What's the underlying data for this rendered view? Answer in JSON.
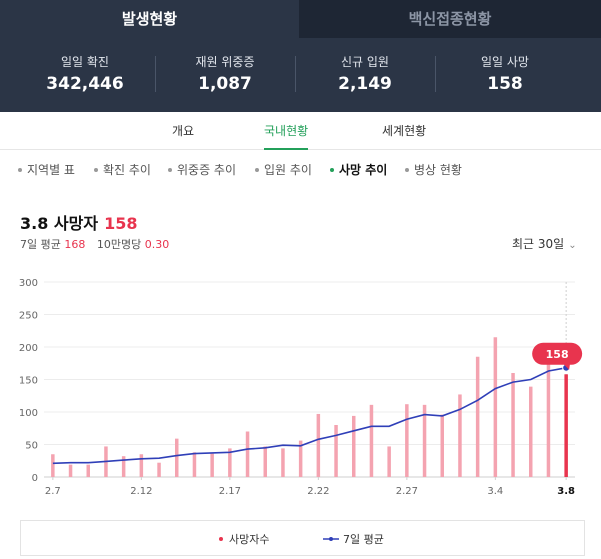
{
  "top_tabs": [
    {
      "label": "발생현황"
    },
    {
      "label": "백신접종현황"
    }
  ],
  "stats": [
    {
      "label": "일일 확진",
      "value": "342,446"
    },
    {
      "label": "재원 위중증",
      "value": "1,087"
    },
    {
      "label": "신규 입원",
      "value": "2,149"
    },
    {
      "label": "일일 사망",
      "value": "158"
    }
  ],
  "sub_tabs": [
    {
      "label": "개요"
    },
    {
      "label": "국내현황"
    },
    {
      "label": "세계현황"
    }
  ],
  "filters": [
    {
      "label": "지역별 표"
    },
    {
      "label": "확진 추이"
    },
    {
      "label": "위중증 추이"
    },
    {
      "label": "입원 추이"
    },
    {
      "label": "사망 추이"
    },
    {
      "label": "병상 현황"
    }
  ],
  "header": {
    "date": "3.8",
    "title": "사망자",
    "count": "158",
    "avg_label": "7일 평균",
    "avg_value": "168",
    "per100k_label": "10만명당",
    "per100k_value": "0.30",
    "period": "최근 30일"
  },
  "colors": {
    "bar": "#f4a3b0",
    "bar_highlight": "#e8344e",
    "line": "#2f3fb8",
    "accent": "#e8344e",
    "green": "#23a05a"
  },
  "chart_data": {
    "type": "bar",
    "categories": [
      "2.7",
      "2.8",
      "2.9",
      "2.10",
      "2.11",
      "2.12",
      "2.13",
      "2.14",
      "2.15",
      "2.16",
      "2.17",
      "2.18",
      "2.19",
      "2.20",
      "2.21",
      "2.22",
      "2.23",
      "2.24",
      "2.25",
      "2.26",
      "2.27",
      "2.28",
      "3.1",
      "3.2",
      "3.3",
      "3.4",
      "3.5",
      "3.6",
      "3.7",
      "3.8"
    ],
    "tick_labels": [
      "2.7",
      "2.12",
      "2.17",
      "2.22",
      "2.27",
      "3.4",
      "3.8"
    ],
    "series": [
      {
        "name": "사망자수",
        "type": "bar",
        "values": [
          35,
          19,
          19,
          47,
          32,
          35,
          22,
          59,
          38,
          36,
          44,
          70,
          47,
          44,
          56,
          97,
          80,
          94,
          111,
          47,
          112,
          111,
          96,
          127,
          185,
          215,
          160,
          139,
          178,
          158
        ]
      },
      {
        "name": "7일 평균",
        "type": "line",
        "values": [
          21,
          22,
          22,
          24,
          26,
          28,
          29,
          33,
          36,
          37,
          38,
          43,
          45,
          49,
          48,
          58,
          64,
          71,
          78,
          78,
          89,
          96,
          94,
          104,
          118,
          136,
          146,
          150,
          163,
          168
        ]
      }
    ],
    "yticks": [
      0,
      50,
      100,
      150,
      200,
      250,
      300
    ],
    "ylim": [
      0,
      300
    ],
    "highlight_label": "158",
    "grid": true,
    "legend": "bottom"
  }
}
